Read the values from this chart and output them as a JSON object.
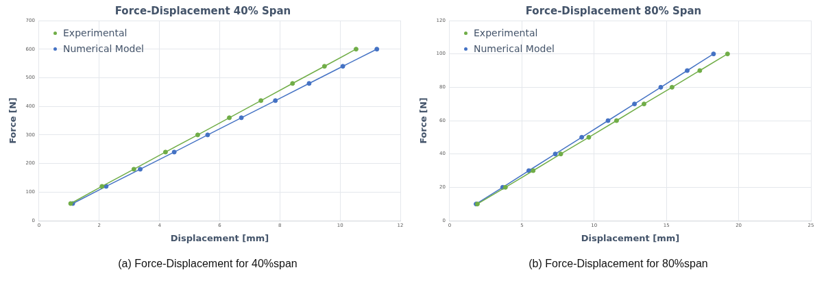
{
  "chart_data": [
    {
      "type": "line",
      "title": "Force-Displacement 40% Span",
      "xlabel": "Displacement [mm]",
      "ylabel": "Force [N]",
      "xlim": [
        0,
        12
      ],
      "xticks": [
        0,
        2,
        4,
        6,
        8,
        10,
        12
      ],
      "ylim": [
        0,
        700
      ],
      "yticks": [
        0,
        100,
        200,
        300,
        400,
        500,
        600,
        700
      ],
      "grid": true,
      "legend": "top left",
      "marker": "circle",
      "annotations": [
        "(a)  Force-Displacement for 40%span"
      ],
      "series": [
        {
          "name": "Experimental",
          "color": "#70ad47",
          "x": [
            1.05,
            2.09,
            3.15,
            4.2,
            5.27,
            6.32,
            7.37,
            8.42,
            9.48,
            10.53
          ],
          "values": [
            60,
            120,
            180,
            240,
            300,
            360,
            420,
            480,
            540,
            600
          ]
        },
        {
          "name": "Numerical Model",
          "color": "#4472c4",
          "x": [
            1.12,
            2.23,
            3.36,
            4.49,
            5.6,
            6.72,
            7.85,
            8.97,
            10.09,
            11.22
          ],
          "values": [
            60,
            120,
            180,
            240,
            300,
            360,
            420,
            480,
            540,
            600
          ]
        }
      ]
    },
    {
      "type": "line",
      "title": "Force-Displacement 80% Span",
      "xlabel": "Displacement [mm]",
      "ylabel": "Force [N]",
      "xlim": [
        0,
        25
      ],
      "xticks": [
        0,
        5,
        10,
        15,
        20,
        25
      ],
      "ylim": [
        0,
        120
      ],
      "yticks": [
        0,
        20,
        40,
        60,
        80,
        100,
        120
      ],
      "grid": true,
      "legend": "top left",
      "marker": "circle",
      "annotations": [
        "(b)  Force-Displacement for 80%span"
      ],
      "series": [
        {
          "name": "Experimental",
          "color": "#70ad47",
          "x": [
            1.92,
            3.86,
            5.78,
            7.69,
            9.63,
            11.55,
            13.45,
            15.39,
            17.31,
            19.23
          ],
          "values": [
            10,
            20,
            30,
            40,
            50,
            60,
            70,
            80,
            90,
            100
          ]
        },
        {
          "name": "Numerical Model",
          "color": "#4472c4",
          "x": [
            1.83,
            3.67,
            5.48,
            7.31,
            9.14,
            10.96,
            12.79,
            14.61,
            16.44,
            18.26
          ],
          "values": [
            10,
            20,
            30,
            40,
            50,
            60,
            70,
            80,
            90,
            100
          ]
        }
      ]
    }
  ]
}
